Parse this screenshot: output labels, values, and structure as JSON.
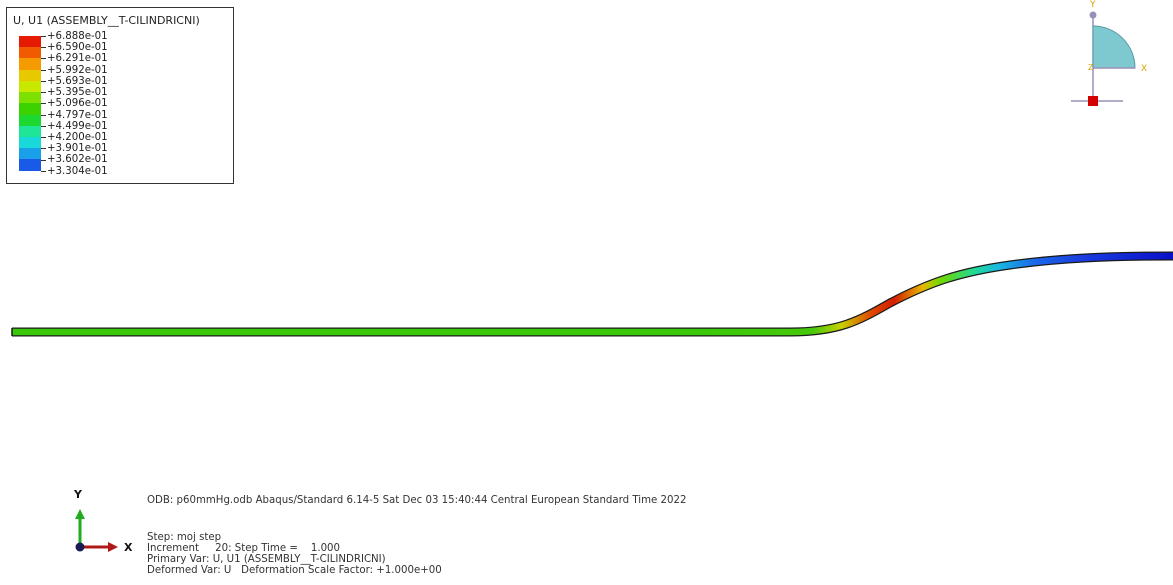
{
  "legend": {
    "title": "U, U1 (ASSEMBLY__T-CILINDRICNI)",
    "labels": [
      "+6.888e-01",
      "+6.590e-01",
      "+6.291e-01",
      "+5.992e-01",
      "+5.693e-01",
      "+5.395e-01",
      "+5.096e-01",
      "+4.797e-01",
      "+4.499e-01",
      "+4.200e-01",
      "+3.901e-01",
      "+3.602e-01",
      "+3.304e-01"
    ],
    "colors": [
      "#e61a00",
      "#f25a00",
      "#f59a00",
      "#e8c800",
      "#c8e800",
      "#7ee000",
      "#3cd200",
      "#1ed832",
      "#1ee696",
      "#18d8d8",
      "#1aa0e8",
      "#1a5ae8",
      "#0000cc"
    ]
  },
  "info": {
    "odb_line": "ODB: p60mmHg.odb    Abaqus/Standard 6.14-5    Sat Dec 03 15:40:44 Central European Standard Time 2022",
    "step": "Step: moj step",
    "increment": "Increment     20: Step Time =    1.000",
    "primary_var": "Primary Var: U, U1 (ASSEMBLY__T-CILINDRICNI)",
    "deformed_var": "Deformed Var: U   Deformation Scale Factor: +1.000e+00"
  },
  "triad": {
    "x_label": "X",
    "y_label": "Y"
  },
  "view_triad": {
    "x_label": "X",
    "y_label": "Y",
    "z_label": "Z"
  }
}
